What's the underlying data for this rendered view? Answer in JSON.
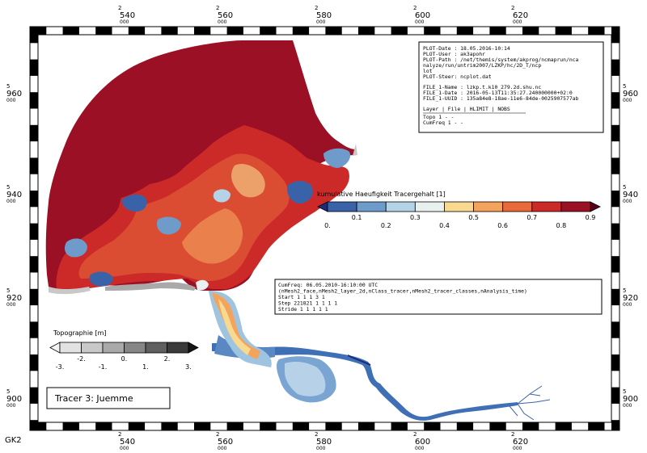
{
  "projection": "GK2",
  "title_box": "Tracer 3: Juemme",
  "x_ticks": [
    {
      "big": "2",
      "num": "540",
      "small": "000"
    },
    {
      "big": "2",
      "num": "560",
      "small": "000"
    },
    {
      "big": "2",
      "num": "580",
      "small": "000"
    },
    {
      "big": "2",
      "num": "600",
      "small": "000"
    },
    {
      "big": "2",
      "num": "620",
      "small": "000"
    }
  ],
  "y_ticks": [
    {
      "big": "5",
      "num": "960",
      "small": "000"
    },
    {
      "big": "5",
      "num": "940",
      "small": "000"
    },
    {
      "big": "5",
      "num": "920",
      "small": "000"
    },
    {
      "big": "5",
      "num": "900",
      "small": "000"
    }
  ],
  "info_box": {
    "plot_lines": [
      "PLOT-Date : 18.05.2016-10:14",
      "PLOT-User : ak3apohr",
      "PLOT-Path : /net/themis/system/akprog/ncmaprun/nca",
      "            nalyze/run/untrim2007/LZKP/hc/2D_T/ncp",
      "            lot",
      "PLOT-Steer: ncplot.dat"
    ],
    "file_lines": [
      "FILE_1-Name : lzkp.t.k10_279.2d.shu.nc",
      "FILE_1-Date : 2016-05-13T11:35:27.240000000+02:0",
      "FILE_1-UUID : 135a84e8-18ae-11e6-84de-0025907577ab"
    ],
    "table_header": "Layer | File | HLIMIT | NOBS",
    "table_rows": [
      "Topo       1        -        -",
      "CumFreq    1        -        -"
    ]
  },
  "tracer_legend": {
    "title": "kumulative Haeufigkeit Tracergehalt [1]",
    "upper_labels": [
      "0.1",
      "0.3",
      "0.5",
      "0.7",
      "0.9"
    ],
    "lower_labels": [
      "0.",
      "0.2",
      "0.4",
      "0.6",
      "0.8",
      "1."
    ],
    "colors": [
      "#1c2a80",
      "#3a62a8",
      "#6f9bcb",
      "#b4d3e6",
      "#e8f0f0",
      "#f7d98f",
      "#f3a35b",
      "#e86a3a",
      "#cc2a28",
      "#9b1025",
      "#5a0018"
    ]
  },
  "cumfreq_box": {
    "lines": [
      "CumFreq: 06.05.2010-16:10:00 UTC",
      "(nMesh2_face,nMesh2_layer_2d,nClass_tracer,nMesh2_tracer_classes,nAnalysis_time)",
      "Start      1        1        1        3        1",
      "Step  221821        1        1        1        1",
      "Stride     1        1        1        1        1"
    ]
  },
  "topo_legend": {
    "title": "Topographie [m]",
    "upper_labels": [
      "-2.",
      "0.",
      "2."
    ],
    "lower_labels": [
      "-3.",
      "-1.",
      "1.",
      "3."
    ],
    "colors": [
      "#f4f4f4",
      "#e2e2e2",
      "#c8c8c8",
      "#a9a9a9",
      "#868686",
      "#5f5f5f",
      "#3a3a3a",
      "#151515"
    ]
  }
}
